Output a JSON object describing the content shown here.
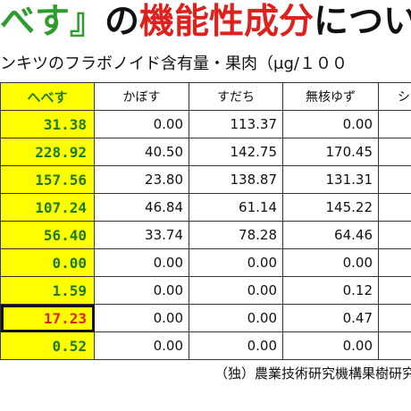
{
  "title": {
    "part1": "べす』",
    "part2": "の",
    "part3": "機能性成分",
    "part4": "について"
  },
  "subtitle": "ンキツのフラボノイド含有量・果肉（μg/１００",
  "table": {
    "headers": [
      "へべす",
      "かぼす",
      "すだち",
      "無核ゆず",
      "シ"
    ],
    "rows": [
      [
        "31.38",
        "0.00",
        "113.37",
        "0.00",
        ""
      ],
      [
        "228.92",
        "40.50",
        "142.75",
        "170.45",
        ""
      ],
      [
        "157.56",
        "23.80",
        "138.87",
        "131.31",
        ""
      ],
      [
        "107.24",
        "46.84",
        "61.14",
        "145.22",
        ""
      ],
      [
        "56.40",
        "33.74",
        "78.28",
        "64.46",
        ""
      ],
      [
        "0.00",
        "0.00",
        "0.00",
        "0.00",
        ""
      ],
      [
        "1.59",
        "0.00",
        "0.00",
        "0.12",
        ""
      ],
      [
        "17.23",
        "0.00",
        "0.00",
        "0.47",
        ""
      ],
      [
        "0.52",
        "0.00",
        "0.00",
        "0.00",
        ""
      ]
    ],
    "highlight_color": "#ffff00",
    "highlight_text_color": "#1e7a1e",
    "emphasis_color": "#e0201c"
  },
  "source": "（独）農業技術研究機構果樹研究所"
}
